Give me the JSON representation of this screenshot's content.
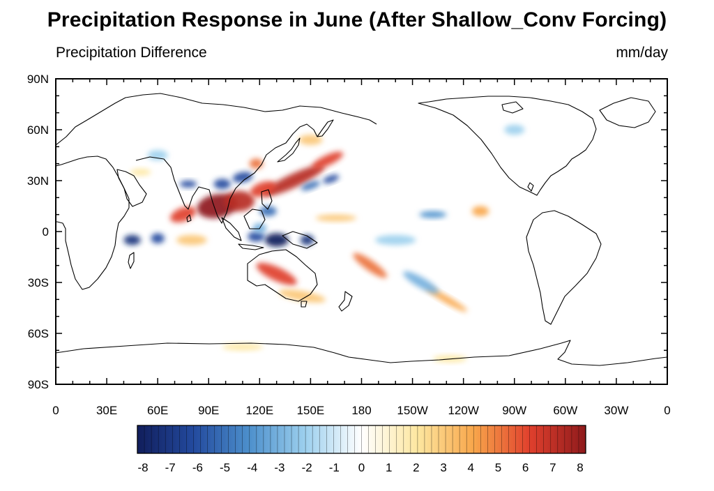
{
  "title": "Precipitation Response in June (After Shallow_Conv Forcing)",
  "left_label": "Precipitation Difference",
  "units": "mm/day",
  "map": {
    "projection": "cylindrical-equidistant",
    "center_longitude": 180,
    "lon_range": [
      0,
      360
    ],
    "lat_range": [
      -90,
      90
    ],
    "lon_ticks": [
      {
        "lon": 0,
        "label": "0"
      },
      {
        "lon": 30,
        "label": "30E"
      },
      {
        "lon": 60,
        "label": "60E"
      },
      {
        "lon": 90,
        "label": "90E"
      },
      {
        "lon": 120,
        "label": "120E"
      },
      {
        "lon": 150,
        "label": "150E"
      },
      {
        "lon": 180,
        "label": "180"
      },
      {
        "lon": 210,
        "label": "150W"
      },
      {
        "lon": 240,
        "label": "120W"
      },
      {
        "lon": 270,
        "label": "90W"
      },
      {
        "lon": 300,
        "label": "60W"
      },
      {
        "lon": 330,
        "label": "30W"
      },
      {
        "lon": 360,
        "label": "0"
      }
    ],
    "lat_ticks": [
      {
        "lat": 90,
        "label": "90N"
      },
      {
        "lat": 60,
        "label": "60N"
      },
      {
        "lat": 30,
        "label": "30N"
      },
      {
        "lat": 0,
        "label": "0"
      },
      {
        "lat": -30,
        "label": "30S"
      },
      {
        "lat": -60,
        "label": "60S"
      },
      {
        "lat": -90,
        "label": "90S"
      }
    ],
    "anomalies": [
      {
        "lon": 95,
        "lat": 15,
        "value": 8,
        "rx": 12,
        "ry": 7,
        "rot": -10
      },
      {
        "lon": 108,
        "lat": 18,
        "value": 7,
        "rx": 9,
        "ry": 6,
        "rot": 0
      },
      {
        "lon": 75,
        "lat": 10,
        "value": 6,
        "rx": 8,
        "ry": 4,
        "rot": -20
      },
      {
        "lon": 140,
        "lat": 30,
        "value": 7,
        "rx": 20,
        "ry": 4,
        "rot": -25
      },
      {
        "lon": 160,
        "lat": 42,
        "value": 6,
        "rx": 10,
        "ry": 3,
        "rot": -25
      },
      {
        "lon": 122,
        "lat": 25,
        "value": 6,
        "rx": 8,
        "ry": 4,
        "rot": -20
      },
      {
        "lon": 118,
        "lat": 40,
        "value": 5,
        "rx": 4,
        "ry": 3,
        "rot": 0
      },
      {
        "lon": 130,
        "lat": -25,
        "value": 6,
        "rx": 13,
        "ry": 4,
        "rot": 25
      },
      {
        "lon": 185,
        "lat": -20,
        "value": 5,
        "rx": 12,
        "ry": 3,
        "rot": 35
      },
      {
        "lon": 230,
        "lat": -40,
        "value": 4,
        "rx": 14,
        "ry": 2,
        "rot": 30
      },
      {
        "lon": 250,
        "lat": 12,
        "value": 4,
        "rx": 5,
        "ry": 3,
        "rot": 0
      },
      {
        "lon": 80,
        "lat": -5,
        "value": 3,
        "rx": 9,
        "ry": 3,
        "rot": 0
      },
      {
        "lon": 145,
        "lat": -38,
        "value": 3,
        "rx": 14,
        "ry": 3,
        "rot": 10
      },
      {
        "lon": 165,
        "lat": 8,
        "value": 3,
        "rx": 12,
        "ry": 2,
        "rot": 0
      },
      {
        "lon": 150,
        "lat": 54,
        "value": 3,
        "rx": 7,
        "ry": 3,
        "rot": 0
      },
      {
        "lon": 110,
        "lat": -68,
        "value": 2,
        "rx": 12,
        "ry": 2,
        "rot": 0
      },
      {
        "lon": 232,
        "lat": -75,
        "value": 2,
        "rx": 10,
        "ry": 2,
        "rot": 0
      },
      {
        "lon": 50,
        "lat": 35,
        "value": 2,
        "rx": 6,
        "ry": 2,
        "rot": 0
      },
      {
        "lon": 130,
        "lat": -5,
        "value": -8,
        "rx": 7,
        "ry": 4,
        "rot": 0
      },
      {
        "lon": 118,
        "lat": -3,
        "value": -6,
        "rx": 5,
        "ry": 3,
        "rot": 0
      },
      {
        "lon": 148,
        "lat": -5,
        "value": -7,
        "rx": 4,
        "ry": 3,
        "rot": 0
      },
      {
        "lon": 45,
        "lat": -5,
        "value": -7,
        "rx": 5,
        "ry": 3,
        "rot": 0
      },
      {
        "lon": 60,
        "lat": -4,
        "value": -6,
        "rx": 4,
        "ry": 3,
        "rot": 0
      },
      {
        "lon": 98,
        "lat": 28,
        "value": -6,
        "rx": 5,
        "ry": 3,
        "rot": 0
      },
      {
        "lon": 110,
        "lat": 32,
        "value": -6,
        "rx": 6,
        "ry": 3,
        "rot": -10
      },
      {
        "lon": 78,
        "lat": 28,
        "value": -6,
        "rx": 5,
        "ry": 2,
        "rot": 0
      },
      {
        "lon": 150,
        "lat": 27,
        "value": -5,
        "rx": 6,
        "ry": 2,
        "rot": -20
      },
      {
        "lon": 162,
        "lat": 31,
        "value": -6,
        "rx": 5,
        "ry": 2,
        "rot": -20
      },
      {
        "lon": 125,
        "lat": 12,
        "value": -5,
        "rx": 5,
        "ry": 3,
        "rot": 0
      },
      {
        "lon": 222,
        "lat": 10,
        "value": -4,
        "rx": 8,
        "ry": 2,
        "rot": 0
      },
      {
        "lon": 120,
        "lat": 2,
        "value": -3,
        "rx": 4,
        "ry": 3,
        "rot": 0
      },
      {
        "lon": 215,
        "lat": -30,
        "value": -3,
        "rx": 12,
        "ry": 3,
        "rot": 30
      },
      {
        "lon": 200,
        "lat": -5,
        "value": -2,
        "rx": 12,
        "ry": 3,
        "rot": 0
      },
      {
        "lon": 60,
        "lat": 45,
        "value": -2,
        "rx": 6,
        "ry": 3,
        "rot": 0
      },
      {
        "lon": 270,
        "lat": 60,
        "value": -2,
        "rx": 6,
        "ry": 3,
        "rot": 0
      }
    ]
  },
  "colorbar": {
    "min": -8,
    "max": 8,
    "labels": [
      "-8",
      "-7",
      "-6",
      "-5",
      "-4",
      "-3",
      "-2",
      "-1",
      "0",
      "1",
      "2",
      "3",
      "4",
      "5",
      "6",
      "7",
      "8"
    ],
    "colors": [
      "#111e5c",
      "#234a9e",
      "#4d90cc",
      "#9dd0ee",
      "#ffffff",
      "#fde7a0",
      "#f8a64b",
      "#e0402d",
      "#8e1a1c"
    ]
  }
}
